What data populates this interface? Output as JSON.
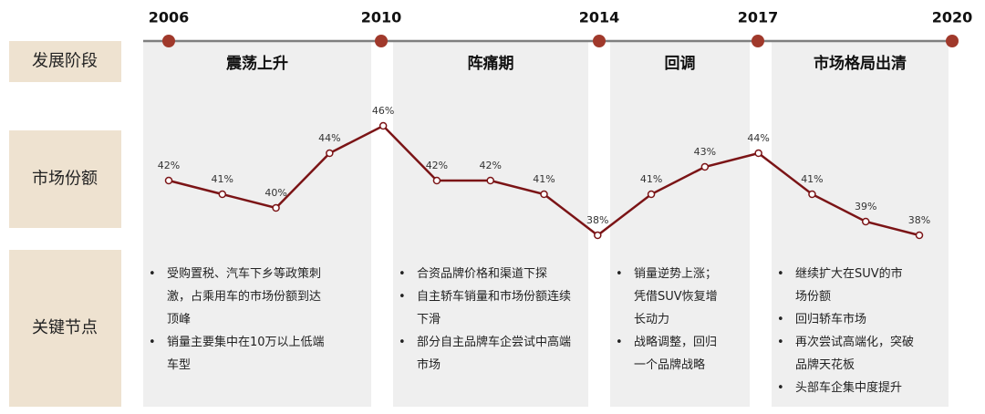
{
  "timeline": {
    "years": [
      "2006",
      "2010",
      "2014",
      "2017",
      "2020"
    ]
  },
  "rows": [
    "发展阶段",
    "市场份额",
    "关键节点"
  ],
  "phases": [
    {
      "title": "震荡上升",
      "bullets": [
        "受购置税、汽车下乡等政策刺激，占乘用车的市场份额到达顶峰",
        "销量主要集中在10万以上低端车型"
      ]
    },
    {
      "title": "阵痛期",
      "bullets": [
        "合资品牌价格和渠道下探",
        "自主轿车销量和市场份额连续下滑",
        "部分自主品牌车企尝试中高端市场"
      ]
    },
    {
      "title": "回调",
      "bullets": [
        "销量逆势上涨；凭借SUV恢复增长动力",
        "战略调整，回归一个品牌战略"
      ]
    },
    {
      "title": "市场格局出清",
      "bullets": [
        "继续扩大在SUV的市场份额",
        "回归轿车市场",
        "再次尝试高端化，突破品牌天花板",
        "头部车企集中度提升"
      ]
    }
  ],
  "market_share": {
    "values": [
      42,
      41,
      40,
      44,
      46,
      42,
      42,
      41,
      38,
      41,
      43,
      44,
      41,
      39,
      38
    ],
    "value_labels": [
      "42%",
      "41%",
      "40%",
      "44%",
      "46%",
      "42%",
      "42%",
      "41%",
      "38%",
      "41%",
      "43%",
      "44%",
      "41%",
      "39%",
      "38%"
    ],
    "color": "#7b1416"
  }
}
